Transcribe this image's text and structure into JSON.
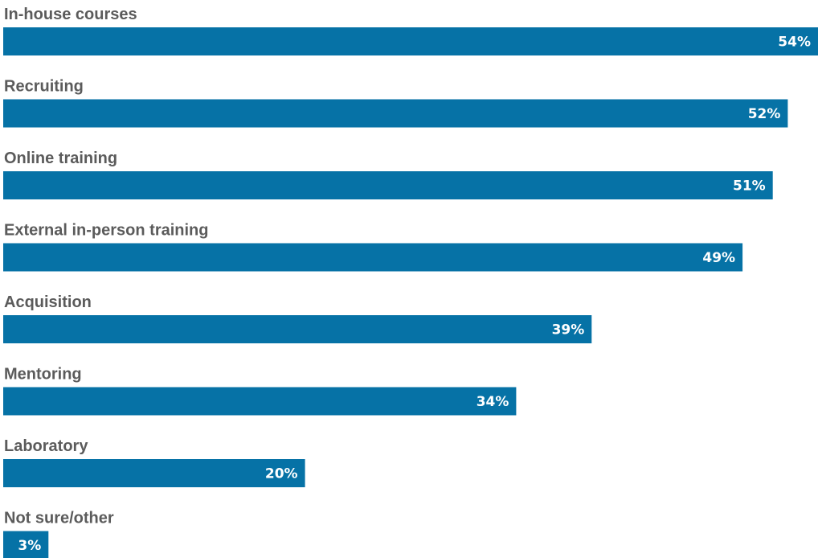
{
  "chart_data": {
    "type": "bar",
    "orientation": "horizontal",
    "categories": [
      "In-house courses",
      "Recruiting",
      "Online training",
      "External in-person training",
      "Acquisition",
      "Mentoring",
      "Laboratory",
      "Not sure/other"
    ],
    "values": [
      54,
      52,
      51,
      49,
      39,
      34,
      20,
      3
    ],
    "value_labels": [
      "54%",
      "52%",
      "51%",
      "49%",
      "39%",
      "34%",
      "20%",
      "3%"
    ],
    "unit": "%",
    "xlim": [
      0,
      54
    ],
    "grid": false,
    "legend": "none",
    "bar_color": "#0672a6",
    "label_color": "#5b5b5b",
    "value_label_color": "#ffffff"
  }
}
